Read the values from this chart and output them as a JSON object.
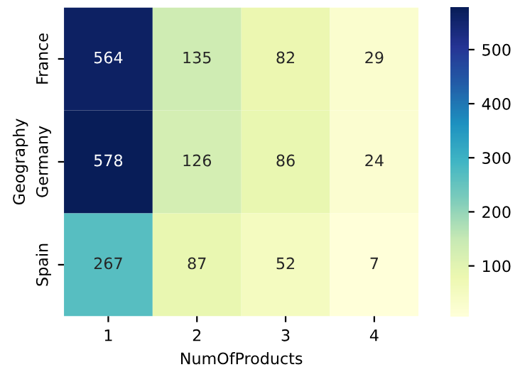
{
  "chart_data": {
    "type": "heatmap",
    "xlabel": "NumOfProducts",
    "ylabel": "Geography",
    "categories": [
      "1",
      "2",
      "3",
      "4"
    ],
    "y_categories": [
      "France",
      "Germany",
      "Spain"
    ],
    "cells": [
      [
        564,
        135,
        82,
        29
      ],
      [
        578,
        126,
        86,
        24
      ],
      [
        267,
        87,
        52,
        7
      ]
    ],
    "data_labels": true,
    "clim": [
      7,
      578
    ],
    "cticks": [
      100,
      200,
      300,
      400,
      500
    ]
  }
}
